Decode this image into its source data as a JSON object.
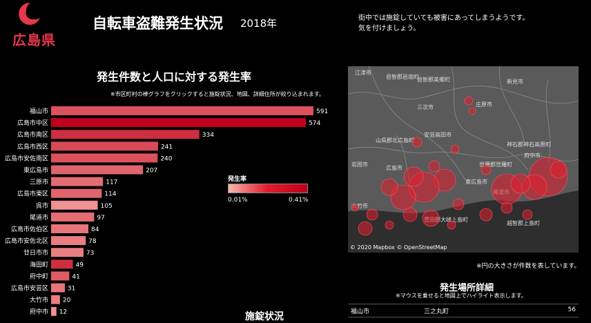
{
  "header": {
    "prefecture": "広島県",
    "title": "自転車盗難発生状況",
    "year": "2018年",
    "warning_line1": "街中では施錠していても被害にあってしまうようです。",
    "warning_line2": "気を付けましょう。"
  },
  "colors": {
    "accent": "#e8374a",
    "rate_low": "#fbb6ad",
    "rate_high": "#c0001c"
  },
  "chart_data": {
    "type": "bar",
    "orientation": "horizontal",
    "title": "発生件数と人口に対する発生率",
    "note": "※市区町村の棒グラフをクリックすると施錠状況、地図、詳細住所が絞り込まれます。",
    "categories": [
      "福山市",
      "広島市中区",
      "広島市南区",
      "広島市西区",
      "広島市安佐南区",
      "東広島市",
      "三原市",
      "広島市東区",
      "呉市",
      "尾道市",
      "広島市佐伯区",
      "広島市安佐北区",
      "廿日市市",
      "海田町",
      "府中町",
      "広島市安芸区",
      "大竹市",
      "府中市"
    ],
    "values": [
      591,
      574,
      334,
      241,
      240,
      207,
      117,
      114,
      105,
      97,
      84,
      78,
      73,
      49,
      41,
      31,
      20,
      12
    ],
    "rate_level": [
      0.55,
      1.0,
      0.75,
      0.6,
      0.55,
      0.45,
      0.4,
      0.45,
      0.2,
      0.4,
      0.35,
      0.3,
      0.3,
      0.75,
      0.5,
      0.35,
      0.3,
      0.2
    ],
    "legend": {
      "title": "発生率",
      "min_label": "0.01%",
      "max_label": "0.41%"
    }
  },
  "bottom_section_title": "施錠状況",
  "map": {
    "places": [
      "江津市",
      "邑智郡邑南町",
      "邑智郡美郷町",
      "新見市",
      "庄原市",
      "三次市",
      "山県郡北広島町",
      "安芸高田市",
      "神石郡神石高原町",
      "府中市",
      "世羅郡世羅町",
      "広島市",
      "東広島市",
      "岩国市",
      "尾道市",
      "大竹市",
      "豊田郡大崎上島町",
      "越智郡上島町"
    ],
    "attribution": "© 2020 Mapbox © OpenStreetMap",
    "note": "※円の大きさが件数を表しています。"
  },
  "detail": {
    "title": "発生場所詳細",
    "note": "※マウスを乗せると地図上でハイライト表示します。",
    "rows": [
      {
        "city": "福山市",
        "town": "三之丸町",
        "count": "56"
      }
    ]
  }
}
